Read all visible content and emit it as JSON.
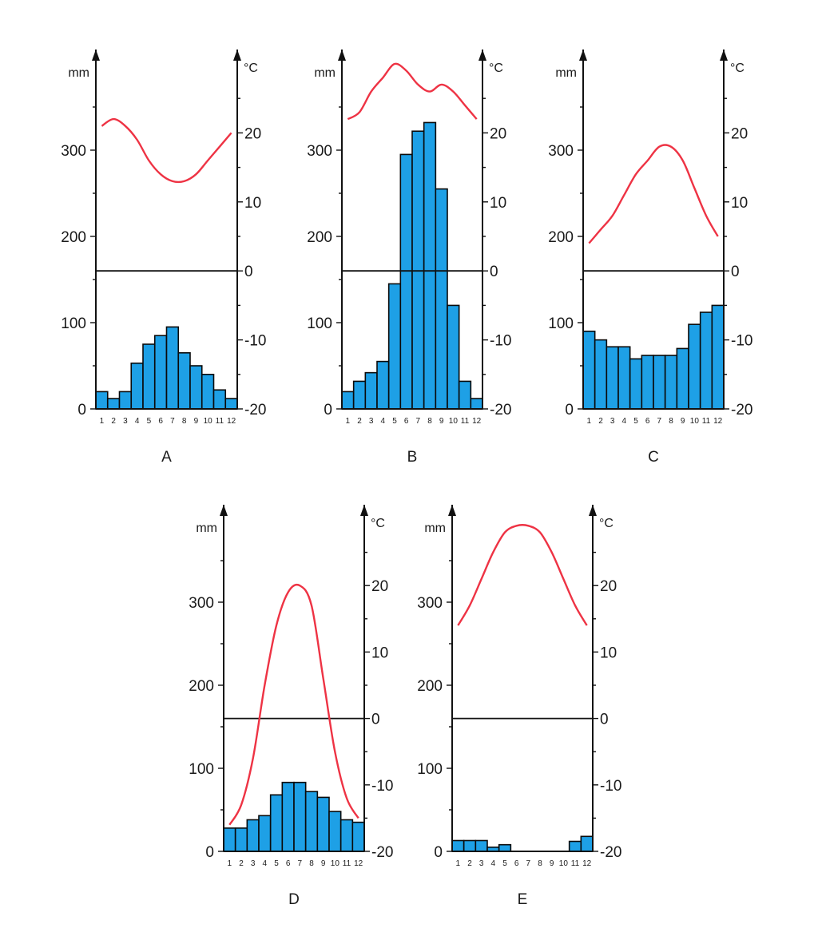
{
  "colors": {
    "bar_fill": "#1ea0e6",
    "bar_stroke": "#0a0a0a",
    "temp_line": "#ee3344",
    "axis": "#111111"
  },
  "chart_data": [
    {
      "id": "A",
      "type": "bar",
      "label": "A",
      "categories": [
        "1",
        "2",
        "3",
        "4",
        "5",
        "6",
        "7",
        "8",
        "9",
        "10",
        "11",
        "12"
      ],
      "precip_mm": [
        20,
        12,
        20,
        53,
        75,
        85,
        95,
        65,
        50,
        40,
        22,
        12
      ],
      "temp_c": [
        21,
        22,
        21,
        19,
        16,
        14,
        13,
        13,
        14,
        16,
        18,
        20
      ],
      "left_axis": {
        "unit": "mm",
        "ticks": [
          "0",
          "100",
          "200",
          "300"
        ],
        "range": [
          0,
          400
        ]
      },
      "right_axis": {
        "unit": "°C",
        "ticks": [
          "-20",
          "-10",
          "0",
          "10",
          "20"
        ],
        "range": [
          -20,
          30
        ]
      }
    },
    {
      "id": "B",
      "type": "bar",
      "label": "B",
      "categories": [
        "1",
        "2",
        "3",
        "4",
        "5",
        "6",
        "7",
        "8",
        "9",
        "10",
        "11",
        "12"
      ],
      "precip_mm": [
        20,
        32,
        42,
        55,
        145,
        295,
        322,
        332,
        255,
        120,
        32,
        12
      ],
      "temp_c": [
        22,
        23,
        26,
        28,
        30,
        29,
        27,
        26,
        27,
        26,
        24,
        22
      ],
      "left_axis": {
        "unit": "mm",
        "ticks": [
          "0",
          "100",
          "200",
          "300"
        ],
        "range": [
          0,
          400
        ]
      },
      "right_axis": {
        "unit": "°C",
        "ticks": [
          "-20",
          "-10",
          "0",
          "10",
          "20"
        ],
        "range": [
          -20,
          30
        ]
      }
    },
    {
      "id": "C",
      "type": "bar",
      "label": "C",
      "categories": [
        "1",
        "2",
        "3",
        "4",
        "5",
        "6",
        "7",
        "8",
        "9",
        "10",
        "11",
        "12"
      ],
      "precip_mm": [
        90,
        80,
        72,
        72,
        58,
        62,
        62,
        62,
        70,
        98,
        112,
        120
      ],
      "temp_c": [
        4,
        6,
        8,
        11,
        14,
        16,
        18,
        18,
        16,
        12,
        8,
        5
      ],
      "left_axis": {
        "unit": "mm",
        "ticks": [
          "0",
          "100",
          "200",
          "300"
        ],
        "range": [
          0,
          400
        ]
      },
      "right_axis": {
        "unit": "°C",
        "ticks": [
          "-20",
          "-10",
          "0",
          "10",
          "20"
        ],
        "range": [
          -20,
          30
        ]
      }
    },
    {
      "id": "D",
      "type": "bar",
      "label": "D",
      "categories": [
        "1",
        "2",
        "3",
        "4",
        "5",
        "6",
        "7",
        "8",
        "9",
        "10",
        "11",
        "12"
      ],
      "precip_mm": [
        28,
        28,
        38,
        43,
        68,
        83,
        83,
        72,
        65,
        48,
        38,
        35
      ],
      "temp_c": [
        -16,
        -13,
        -6,
        5,
        14,
        19,
        20,
        17,
        6,
        -5,
        -12,
        -15
      ],
      "left_axis": {
        "unit": "mm",
        "ticks": [
          "0",
          "100",
          "200",
          "300"
        ],
        "range": [
          0,
          400
        ]
      },
      "right_axis": {
        "unit": "°C",
        "ticks": [
          "-20",
          "-10",
          "0",
          "10",
          "20"
        ],
        "range": [
          -20,
          30
        ]
      }
    },
    {
      "id": "E",
      "type": "bar",
      "label": "E",
      "categories": [
        "1",
        "2",
        "3",
        "4",
        "5",
        "6",
        "7",
        "8",
        "9",
        "10",
        "11",
        "12"
      ],
      "precip_mm": [
        13,
        13,
        13,
        5,
        8,
        0,
        0,
        0,
        0,
        0,
        12,
        18
      ],
      "temp_c": [
        14,
        17,
        21,
        25,
        28,
        29,
        29,
        28,
        25,
        21,
        17,
        14
      ],
      "left_axis": {
        "unit": "mm",
        "ticks": [
          "0",
          "100",
          "200",
          "300"
        ],
        "range": [
          0,
          400
        ]
      },
      "right_axis": {
        "unit": "°C",
        "ticks": [
          "-20",
          "-10",
          "0",
          "10",
          "20"
        ],
        "range": [
          -20,
          30
        ]
      }
    }
  ]
}
